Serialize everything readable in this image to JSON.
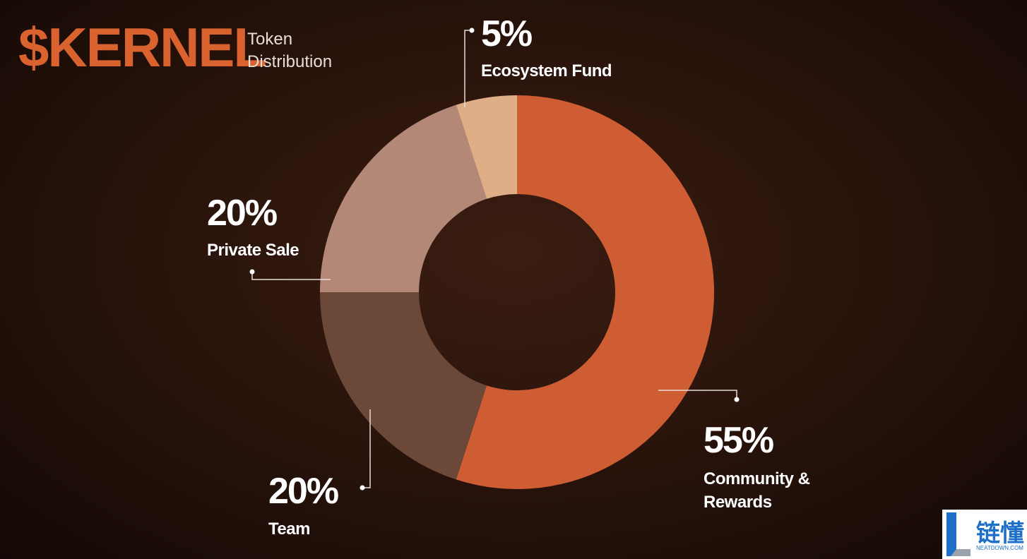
{
  "chart_data": {
    "type": "donut",
    "title": "$KERNEL",
    "subtitle": "Token Distribution",
    "categories": [
      "Community & Rewards",
      "Team",
      "Private Sale",
      "Ecosystem Fund"
    ],
    "values": [
      55,
      20,
      20,
      5
    ],
    "value_labels": [
      "55%",
      "20%",
      "20%",
      "5%"
    ],
    "colors": [
      "#cf5d34",
      "#6c4839",
      "#b38877",
      "#dfae86"
    ]
  },
  "watermark": {
    "text": "链懂",
    "subtext": "NEATDOWN.COM"
  }
}
